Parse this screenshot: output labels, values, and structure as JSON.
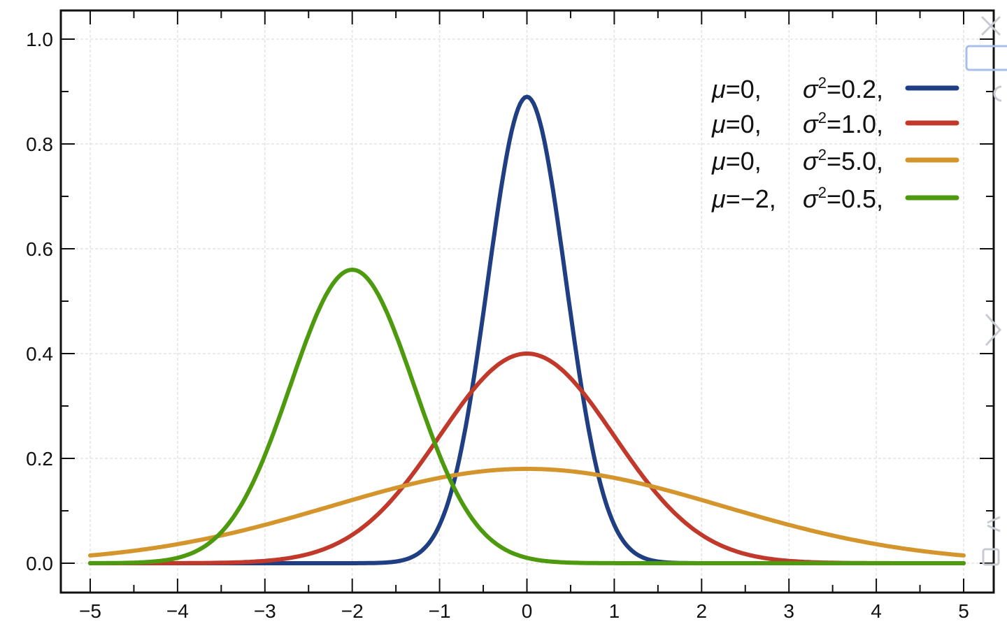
{
  "chart_data": {
    "type": "line",
    "title": "",
    "xlabel": "",
    "ylabel": "",
    "xlim": [
      -5,
      5
    ],
    "ylim": [
      0,
      1.0
    ],
    "x_ticks": [
      -5,
      -4,
      -3,
      -2,
      -1,
      0,
      1,
      2,
      3,
      4,
      5
    ],
    "x_tick_labels": [
      "−5",
      "−4",
      "−3",
      "−2",
      "−1",
      "0",
      "1",
      "2",
      "3",
      "4",
      "5"
    ],
    "y_ticks": [
      0.0,
      0.2,
      0.4,
      0.6,
      0.8,
      1.0
    ],
    "y_tick_labels": [
      "0.0",
      "0.2",
      "0.4",
      "0.6",
      "0.8",
      "1.0"
    ],
    "grid": true,
    "legend_position": "top-right",
    "series": [
      {
        "mu_label": "0,",
        "sigma2_label": "0.2,",
        "mu": 0,
        "sigma2": 0.2,
        "color": "#1f3f82",
        "peak": 0.89
      },
      {
        "mu_label": "0,",
        "sigma2_label": "1.0,",
        "mu": 0,
        "sigma2": 1.0,
        "color": "#c0392b",
        "peak": 0.4
      },
      {
        "mu_label": "0,",
        "sigma2_label": "5.0,",
        "mu": 0,
        "sigma2": 5.0,
        "color": "#d4962c",
        "peak": 0.18
      },
      {
        "mu_label": "−2,",
        "sigma2_label": "0.5,",
        "mu": -2,
        "sigma2": 0.5,
        "color": "#4e9a0e",
        "peak": 0.56
      }
    ]
  },
  "legend_symbols": {
    "mu": "μ",
    "equals": "=",
    "sigma": "σ",
    "squared": "2"
  },
  "controls": {
    "close_icon": "close-icon",
    "fullscreen_icon": "fullscreen-icon",
    "rotate_icon": "rotate-icon",
    "next_icon": "chevron-right-icon",
    "share_icon": "share-icon",
    "copy_icon": "copy-icon"
  }
}
